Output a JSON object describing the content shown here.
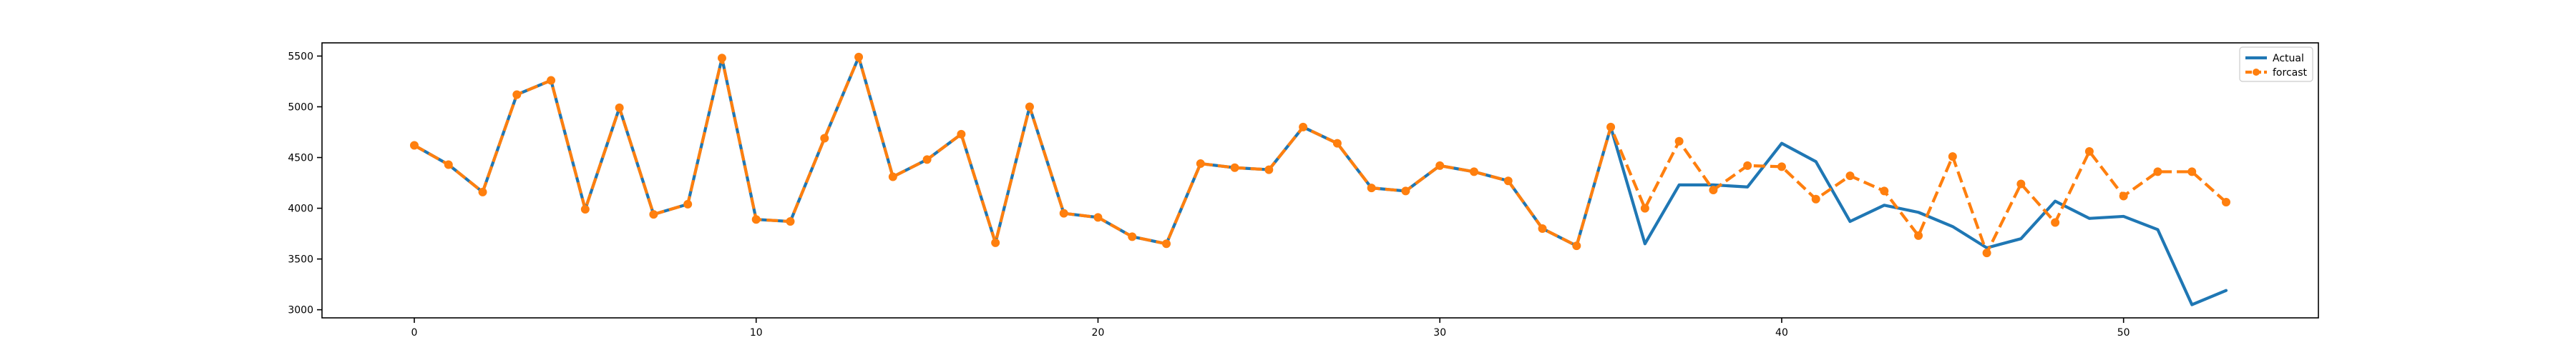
{
  "chart_data": {
    "type": "line",
    "title": "",
    "xlabel": "",
    "ylabel": "",
    "xlim": [
      -2.7,
      55.7
    ],
    "ylim": [
      2920,
      5630
    ],
    "xticks": [
      0,
      10,
      20,
      30,
      40,
      50
    ],
    "yticks": [
      3000,
      3500,
      4000,
      4500,
      5000,
      5500
    ],
    "grid": false,
    "legend_position": "upper right",
    "x": [
      0,
      1,
      2,
      3,
      4,
      5,
      6,
      7,
      8,
      9,
      10,
      11,
      12,
      13,
      14,
      15,
      16,
      17,
      18,
      19,
      20,
      21,
      22,
      23,
      24,
      25,
      26,
      27,
      28,
      29,
      30,
      31,
      32,
      33,
      34,
      35,
      36,
      37,
      38,
      39,
      40,
      41,
      42,
      43,
      44,
      45,
      46,
      47,
      48,
      49,
      50,
      51,
      52,
      53
    ],
    "series": [
      {
        "name": "Actual",
        "color": "#1f77b4",
        "style": "solid",
        "marker": "none",
        "values": [
          4620,
          4430,
          4160,
          5120,
          5260,
          3990,
          4990,
          3940,
          4040,
          5480,
          3890,
          3870,
          4690,
          5490,
          4310,
          4480,
          4730,
          3660,
          5000,
          3950,
          3910,
          3720,
          3650,
          4440,
          4400,
          4380,
          4800,
          4640,
          4200,
          4170,
          4420,
          4360,
          4270,
          3800,
          3630,
          4800,
          3650,
          4230,
          4230,
          4210,
          4640,
          4460,
          3870,
          4030,
          3960,
          3820,
          3610,
          3700,
          4070,
          3900,
          3920,
          3790,
          3050,
          3190
        ]
      },
      {
        "name": "forcast",
        "color": "#ff7f0e",
        "style": "dashed",
        "marker": "circle",
        "values": [
          4620,
          4430,
          4160,
          5120,
          5260,
          3990,
          4990,
          3940,
          4040,
          5480,
          3890,
          3870,
          4690,
          5490,
          4310,
          4480,
          4730,
          3660,
          5000,
          3950,
          3910,
          3720,
          3650,
          4440,
          4400,
          4380,
          4800,
          4640,
          4200,
          4170,
          4420,
          4360,
          4270,
          3800,
          3630,
          4800,
          4000,
          4660,
          4180,
          4420,
          4410,
          4090,
          4320,
          4170,
          3730,
          4510,
          3560,
          4240,
          3860,
          4560,
          4120,
          4360,
          4360,
          4060
        ]
      }
    ]
  }
}
